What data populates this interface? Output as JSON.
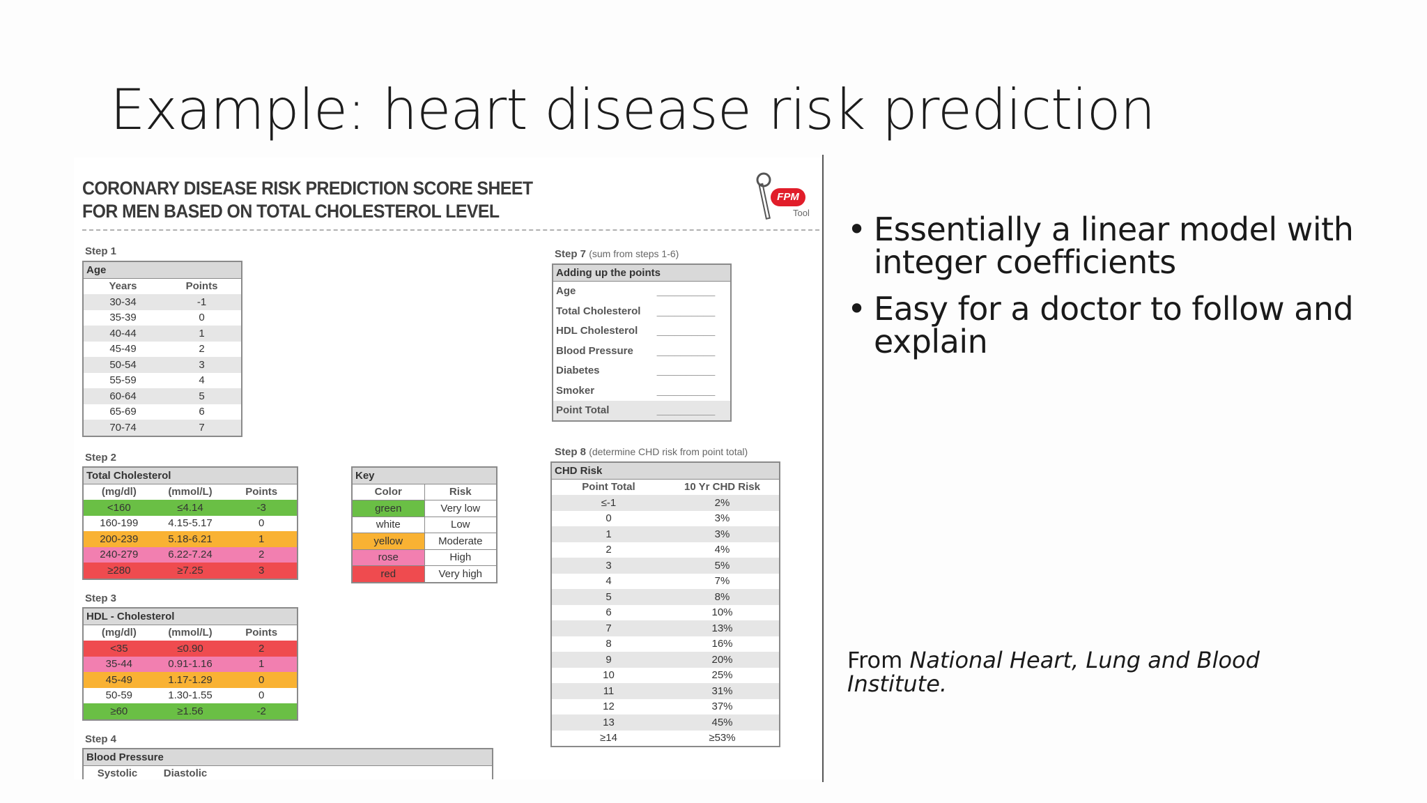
{
  "slide": {
    "title": "Example: heart disease risk prediction",
    "bullets": [
      "Essentially a linear model with integer coefficients",
      "Easy for a doctor to follow and explain"
    ],
    "source_prefix": "From ",
    "source_italic": "National Heart, Lung and Blood Institute."
  },
  "sheet": {
    "title_line1": "CORONARY DISEASE RISK PREDICTION SCORE SHEET",
    "title_line2": "FOR MEN BASED ON TOTAL CHOLESTEROL LEVEL",
    "logo_badge": "FPM",
    "logo_tool": "Tool",
    "colors": {
      "green": "#6abf45",
      "yellow": "#f9b233",
      "rose": "#f27fb0",
      "red": "#ef4b4f",
      "white": "#ffffff"
    },
    "step1": {
      "label": "Step 1",
      "header": "Age",
      "cols": [
        "Years",
        "Points"
      ],
      "rows": [
        [
          "30-34",
          "-1"
        ],
        [
          "35-39",
          "0"
        ],
        [
          "40-44",
          "1"
        ],
        [
          "45-49",
          "2"
        ],
        [
          "50-54",
          "3"
        ],
        [
          "55-59",
          "4"
        ],
        [
          "60-64",
          "5"
        ],
        [
          "65-69",
          "6"
        ],
        [
          "70-74",
          "7"
        ]
      ]
    },
    "step2": {
      "label": "Step 2",
      "header": "Total Cholesterol",
      "cols": [
        "(mg/dl)",
        "(mmol/L)",
        "Points"
      ],
      "rows": [
        [
          "<160",
          "≤4.14",
          "-3"
        ],
        [
          "160-199",
          "4.15-5.17",
          "0"
        ],
        [
          "200-239",
          "5.18-6.21",
          "1"
        ],
        [
          "240-279",
          "6.22-7.24",
          "2"
        ],
        [
          "≥280",
          "≥7.25",
          "3"
        ]
      ]
    },
    "key": {
      "header": "Key",
      "cols": [
        "Color",
        "Risk"
      ],
      "rows": [
        [
          "green",
          "Very low"
        ],
        [
          "white",
          "Low"
        ],
        [
          "yellow",
          "Moderate"
        ],
        [
          "rose",
          "High"
        ],
        [
          "red",
          "Very high"
        ]
      ]
    },
    "step3": {
      "label": "Step 3",
      "header": "HDL - Cholesterol",
      "cols": [
        "(mg/dl)",
        "(mmol/L)",
        "Points"
      ],
      "rows": [
        [
          "<35",
          "≤0.90",
          "2"
        ],
        [
          "35-44",
          "0.91-1.16",
          "1"
        ],
        [
          "45-49",
          "1.17-1.29",
          "0"
        ],
        [
          "50-59",
          "1.30-1.55",
          "0"
        ],
        [
          "≥60",
          "≥1.56",
          "-2"
        ]
      ]
    },
    "step4": {
      "label": "Step 4",
      "header": "Blood Pressure",
      "cols": [
        "Systolic",
        "Diastolic"
      ]
    },
    "step7": {
      "label": "Step 7",
      "sub": "(sum from steps 1-6)",
      "header": "Adding up the points",
      "rows": [
        "Age",
        "Total Cholesterol",
        "HDL Cholesterol",
        "Blood Pressure",
        "Diabetes",
        "Smoker",
        "Point Total"
      ],
      "blank": "__________"
    },
    "step8": {
      "label": "Step 8",
      "sub": "(determine CHD risk from point total)",
      "header": "CHD Risk",
      "cols": [
        "Point Total",
        "10 Yr CHD Risk"
      ],
      "rows": [
        [
          "≤-1",
          "2%"
        ],
        [
          "0",
          "3%"
        ],
        [
          "1",
          "3%"
        ],
        [
          "2",
          "4%"
        ],
        [
          "3",
          "5%"
        ],
        [
          "4",
          "7%"
        ],
        [
          "5",
          "8%"
        ],
        [
          "6",
          "10%"
        ],
        [
          "7",
          "13%"
        ],
        [
          "8",
          "16%"
        ],
        [
          "9",
          "20%"
        ],
        [
          "10",
          "25%"
        ],
        [
          "11",
          "31%"
        ],
        [
          "12",
          "37%"
        ],
        [
          "13",
          "45%"
        ],
        [
          "≥14",
          "≥53%"
        ]
      ]
    }
  }
}
